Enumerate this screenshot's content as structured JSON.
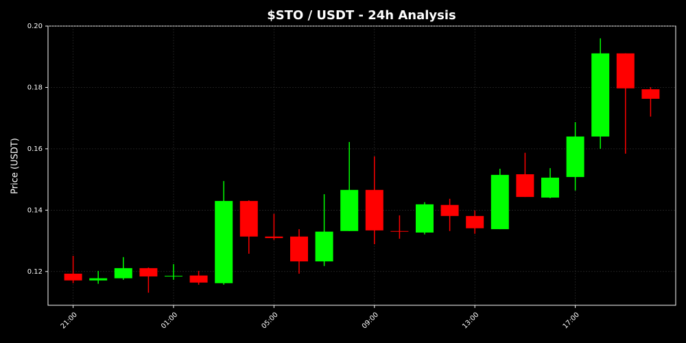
{
  "chart_data": {
    "type": "candlestick",
    "title": "$STO / USDT - 24h Analysis",
    "y_label": "Price (USDT)",
    "categories": [
      "21:00",
      null,
      null,
      null,
      "01:00",
      null,
      null,
      null,
      "05:00",
      null,
      null,
      null,
      "09:00",
      null,
      null,
      null,
      "13:00",
      null,
      null,
      null,
      "17:00",
      null,
      null,
      null
    ],
    "open": [
      0.1193,
      0.1171,
      0.1178,
      0.1211,
      0.1184,
      0.1187,
      0.1162,
      0.143,
      0.1314,
      0.1314,
      0.1233,
      0.1332,
      0.1466,
      0.1332,
      0.1327,
      0.1417,
      0.1381,
      0.1338,
      0.1517,
      0.1441,
      0.1508,
      0.164,
      0.1911,
      0.1794
    ],
    "high": [
      0.1251,
      0.1202,
      0.1247,
      0.1213,
      0.1224,
      0.1202,
      0.1495,
      0.1432,
      0.1388,
      0.1338,
      0.1452,
      0.1622,
      0.1575,
      0.1383,
      0.1426,
      0.1437,
      0.1399,
      0.1535,
      0.1587,
      0.1537,
      0.1687,
      0.196,
      0.1911,
      0.1801
    ],
    "low": [
      0.1162,
      0.116,
      0.1173,
      0.1131,
      0.1173,
      0.1157,
      0.1157,
      0.1258,
      0.1303,
      0.1193,
      0.1218,
      0.1332,
      0.1289,
      0.1307,
      0.1321,
      0.1332,
      0.1323,
      0.1338,
      0.1443,
      0.1439,
      0.1464,
      0.16,
      0.1584,
      0.1705
    ],
    "close": [
      0.1171,
      0.1178,
      0.1211,
      0.1184,
      0.1186,
      0.1164,
      0.143,
      0.1314,
      0.1309,
      0.1233,
      0.133,
      0.1466,
      0.1334,
      0.133,
      0.1419,
      0.1381,
      0.1341,
      0.1515,
      0.1443,
      0.1506,
      0.164,
      0.1911,
      0.1797,
      0.1763
    ],
    "up_color": "#00ff00",
    "down_color": "#ff0000",
    "ylim": [
      0.109,
      0.2
    ],
    "yticks": [
      0.12,
      0.14,
      0.16,
      0.18,
      {
        "value": 0.2,
        "label": "0.20"
      }
    ],
    "grid": true
  }
}
